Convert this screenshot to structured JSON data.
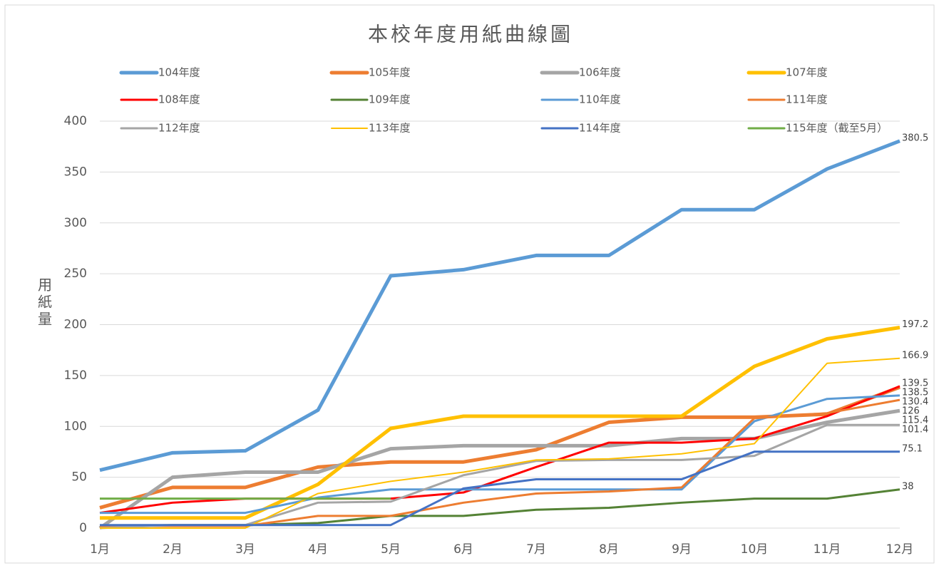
{
  "chart_data": {
    "type": "line",
    "title": "本校年度用紙曲線圖",
    "y_label": "用紙量",
    "categories": [
      "1月",
      "2月",
      "3月",
      "4月",
      "5月",
      "6月",
      "7月",
      "8月",
      "9月",
      "10月",
      "11月",
      "12月"
    ],
    "ylim": [
      0,
      400
    ],
    "yticks": [
      0,
      50,
      100,
      150,
      200,
      250,
      300,
      350,
      400
    ],
    "grid": true,
    "series": [
      {
        "name": "104年度",
        "color": "#5b9bd5",
        "line_width": 5,
        "values": [
          57,
          74,
          76,
          116,
          248,
          254,
          268,
          268,
          313,
          313,
          353,
          380.5
        ]
      },
      {
        "name": "105年度",
        "color": "#ed7d31",
        "line_width": 5,
        "values": [
          20,
          40,
          40,
          60,
          65,
          65,
          77,
          104,
          109,
          109,
          112,
          138.5
        ]
      },
      {
        "name": "106年度",
        "color": "#a5a5a5",
        "line_width": 5,
        "values": [
          0,
          50,
          55,
          55,
          78,
          81,
          81,
          81,
          88,
          88,
          104,
          115.4
        ]
      },
      {
        "name": "107年度",
        "color": "#ffc000",
        "line_width": 5,
        "values": [
          10,
          10,
          10,
          43,
          98,
          110,
          110,
          110,
          110,
          159,
          186,
          197.2
        ]
      },
      {
        "name": "108年度",
        "color": "#ff0000",
        "line_width": 3,
        "values": [
          15,
          25,
          29,
          29,
          29,
          35,
          60,
          84,
          84,
          88,
          110,
          139.5
        ]
      },
      {
        "name": "109年度",
        "color": "#548235",
        "line_width": 3,
        "values": [
          2,
          3,
          3,
          5,
          12,
          12,
          18,
          20,
          25,
          29,
          29,
          38
        ]
      },
      {
        "name": "110年度",
        "color": "#5b9bd5",
        "line_width": 3,
        "values": [
          15,
          15,
          15,
          30,
          38,
          38,
          38,
          38,
          38,
          105,
          127,
          130.4
        ]
      },
      {
        "name": "111年度",
        "color": "#ed7d31",
        "line_width": 3,
        "values": [
          2,
          2,
          2,
          12,
          12,
          25,
          34,
          36,
          40,
          108,
          113,
          126
        ]
      },
      {
        "name": "112年度",
        "color": "#a5a5a5",
        "line_width": 3,
        "values": [
          0,
          3,
          3,
          25,
          26,
          52,
          66,
          67,
          67,
          71,
          101.4,
          101.4
        ]
      },
      {
        "name": "113年度",
        "color": "#ffc000",
        "line_width": 2,
        "values": [
          0,
          0,
          0,
          34,
          46,
          55,
          67,
          68,
          73,
          83,
          162,
          166.9
        ]
      },
      {
        "name": "114年度",
        "color": "#4472c4",
        "line_width": 3,
        "values": [
          3,
          3,
          3,
          3,
          3,
          39,
          48,
          48,
          48,
          75.1,
          75.1,
          75.1
        ]
      },
      {
        "name": "115年度（截至5月）",
        "color": "#70ad47",
        "line_width": 3,
        "values": [
          29,
          29,
          29,
          29,
          29,
          null,
          null,
          null,
          null,
          null,
          null,
          null
        ]
      }
    ]
  }
}
